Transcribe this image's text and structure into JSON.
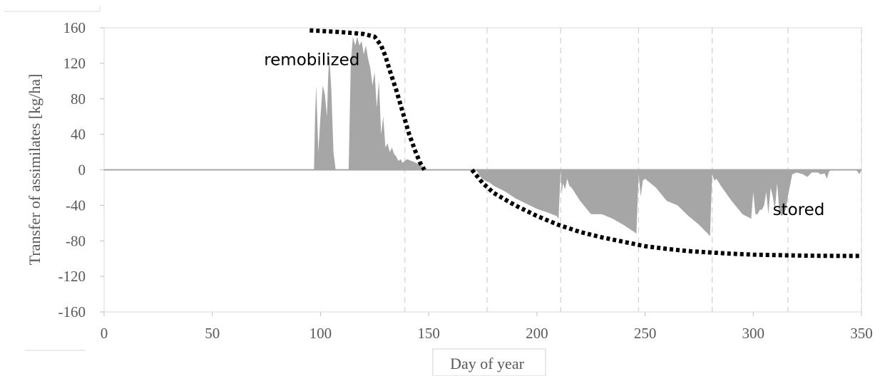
{
  "chart_data": {
    "type": "area",
    "xlabel": "Day of year",
    "ylabel": "Transfer of assimilates [kg/ha]",
    "xlim": [
      0,
      350
    ],
    "ylim": [
      -160,
      160
    ],
    "xticks": [
      0,
      50,
      100,
      150,
      200,
      250,
      300,
      350
    ],
    "yticks": [
      160,
      120,
      80,
      40,
      0,
      -40,
      -80,
      -120,
      -160
    ],
    "vertical_dashed_lines_x": [
      139,
      177,
      211,
      247,
      281,
      316,
      350
    ],
    "annotations": [
      {
        "text": "remobilized",
        "x": 96,
        "y": 118
      },
      {
        "text": "stored",
        "x": 321,
        "y": -51
      }
    ],
    "series": [
      {
        "kind": "area",
        "color": "#a6a6a6",
        "x": [
          97,
          97.5,
          98,
          99,
          100,
          101,
          102,
          103,
          103.5,
          104,
          105,
          106,
          107,
          108,
          109,
          111,
          113,
          114,
          115,
          116,
          117,
          118,
          119,
          120,
          121,
          122,
          123,
          124,
          125,
          126,
          127,
          128,
          129,
          130,
          131,
          132,
          133,
          134,
          135,
          136,
          137,
          138,
          140,
          142,
          144,
          146,
          148,
          149,
          172,
          174,
          176,
          178,
          180,
          185,
          190,
          195,
          200,
          205,
          209,
          210,
          211,
          211.5,
          212,
          213,
          214,
          215,
          216,
          220,
          225,
          230,
          235,
          240,
          245,
          246,
          247,
          248,
          249,
          250,
          251,
          255,
          260,
          265,
          270,
          275,
          279,
          280,
          281,
          282,
          283,
          285,
          290,
          295,
          299,
          300,
          301,
          302,
          303,
          304,
          305,
          306,
          307,
          308,
          309,
          310,
          311,
          312,
          313,
          314,
          315,
          316,
          318,
          320,
          323,
          325,
          327,
          330,
          331,
          333,
          334,
          335,
          336,
          340,
          345,
          348,
          349,
          350
        ],
        "y": [
          0,
          60,
          95,
          20,
          60,
          95,
          85,
          60,
          100,
          130,
          90,
          20,
          0,
          0,
          0,
          0,
          0,
          120,
          150,
          140,
          150,
          140,
          145,
          130,
          140,
          125,
          115,
          95,
          110,
          70,
          100,
          40,
          60,
          25,
          30,
          20,
          25,
          18,
          15,
          10,
          12,
          8,
          12,
          10,
          8,
          5,
          3,
          0,
          0,
          -8,
          -12,
          -14,
          -18,
          -24,
          -32,
          -38,
          -44,
          -48,
          -52,
          -55,
          0,
          -28,
          -15,
          -22,
          -10,
          -18,
          -20,
          -35,
          -50,
          -50,
          -55,
          -62,
          -70,
          -72,
          -5,
          -30,
          -12,
          -10,
          -12,
          -20,
          -35,
          -40,
          -52,
          -62,
          -72,
          -75,
          -5,
          -12,
          -10,
          -18,
          -35,
          -50,
          -55,
          -25,
          -50,
          -50,
          -45,
          -45,
          -40,
          -25,
          -50,
          -20,
          -30,
          -45,
          -15,
          -45,
          -52,
          -50,
          -45,
          -30,
          -5,
          -3,
          -5,
          -8,
          -3,
          -3,
          -5,
          -4,
          -10,
          -2,
          0,
          0,
          0,
          -1,
          -5,
          0
        ]
      },
      {
        "name": "remobilized",
        "kind": "dotted-line",
        "color": "#000000",
        "x": [
          95,
          100,
          110,
          120,
          125,
          128,
          130,
          132,
          135,
          138,
          141,
          144,
          146,
          148
        ],
        "y": [
          157,
          156.5,
          155,
          153,
          150,
          140,
          128,
          112,
          90,
          65,
          40,
          20,
          8,
          0
        ]
      },
      {
        "name": "stored",
        "kind": "dotted-line",
        "color": "#000000",
        "x": [
          170,
          175,
          180,
          190,
          200,
          210,
          220,
          230,
          240,
          250,
          260,
          270,
          280,
          290,
          300,
          310,
          320,
          330,
          340,
          350
        ],
        "y": [
          0,
          -15,
          -26,
          -40,
          -52,
          -62,
          -70,
          -76,
          -81,
          -86,
          -89,
          -91.5,
          -93,
          -94.5,
          -95.5,
          -96,
          -96.5,
          -96.8,
          -97,
          -97
        ]
      }
    ]
  }
}
